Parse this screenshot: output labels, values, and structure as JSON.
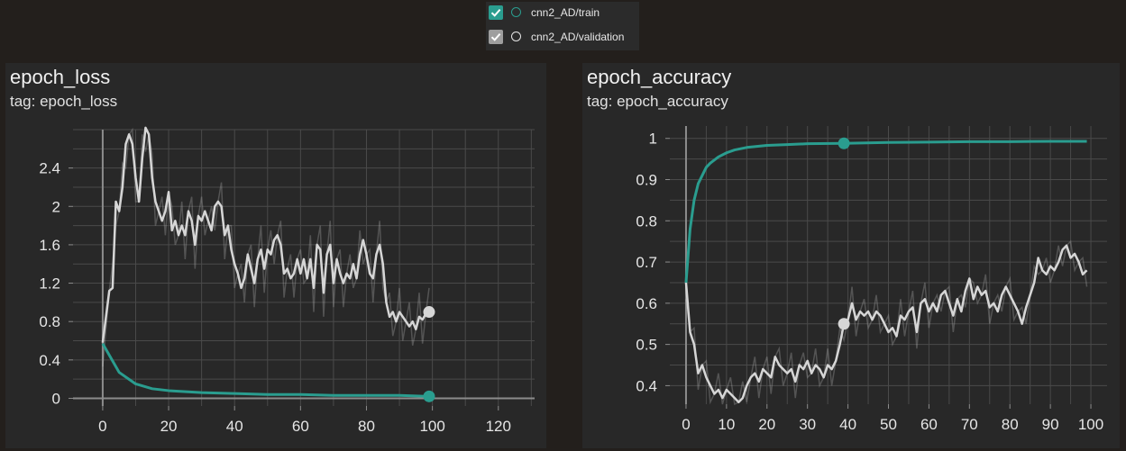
{
  "legend": {
    "items": [
      {
        "label": "cnn2_AD/train",
        "checkbox_color": "#2a9d8f",
        "circle_color": "#2a9d8f",
        "checked": true
      },
      {
        "label": "cnn2_AD/validation",
        "checkbox_color": "#9e9e9e",
        "circle_color": "#e6e6e6",
        "checked": true
      }
    ]
  },
  "colors": {
    "train": "#2a9d8f",
    "validation": "#d6d6d6",
    "grid": "#4a4a4a",
    "axis": "#8c8c8c"
  },
  "cards": [
    {
      "title": "epoch_loss",
      "tag": "tag: epoch_loss"
    },
    {
      "title": "epoch_accuracy",
      "tag": "tag: epoch_accuracy"
    }
  ],
  "chart_data": [
    {
      "type": "line",
      "title": "epoch_loss",
      "xlabel": "",
      "ylabel": "",
      "xlim": [
        -9,
        131
      ],
      "ylim": [
        -0.08,
        2.8
      ],
      "xticks": [
        0,
        20,
        40,
        60,
        80,
        100,
        120
      ],
      "yticks": [
        0,
        0.4,
        0.8,
        1.2,
        1.6,
        2,
        2.4
      ],
      "grid": true,
      "series": [
        {
          "name": "cnn2_AD/train",
          "x": [
            0,
            5,
            10,
            15,
            20,
            30,
            40,
            50,
            60,
            70,
            80,
            90,
            99
          ],
          "values": [
            0.57,
            0.27,
            0.15,
            0.1,
            0.08,
            0.06,
            0.05,
            0.04,
            0.04,
            0.03,
            0.03,
            0.03,
            0.02
          ]
        },
        {
          "name": "cnn2_AD/validation",
          "x": [
            0,
            2,
            3,
            4,
            5,
            6,
            7,
            8,
            9,
            10,
            11,
            12,
            13,
            14,
            15,
            16,
            17,
            18,
            19,
            20,
            21,
            22,
            23,
            24,
            25,
            26,
            27,
            28,
            29,
            30,
            31,
            32,
            33,
            34,
            35,
            36,
            37,
            38,
            39,
            40,
            41,
            42,
            43,
            44,
            45,
            46,
            47,
            48,
            49,
            50,
            51,
            52,
            53,
            54,
            55,
            56,
            57,
            58,
            59,
            60,
            61,
            62,
            63,
            64,
            65,
            66,
            67,
            68,
            69,
            70,
            71,
            72,
            73,
            74,
            75,
            76,
            77,
            78,
            79,
            80,
            81,
            82,
            83,
            84,
            85,
            86,
            87,
            88,
            89,
            90,
            91,
            92,
            93,
            94,
            95,
            96,
            97,
            98,
            99
          ],
          "values": [
            0.58,
            1.12,
            1.15,
            2.05,
            1.95,
            2.2,
            2.65,
            2.75,
            2.65,
            2.3,
            2.05,
            2.5,
            2.82,
            2.75,
            2.3,
            2.05,
            1.95,
            1.85,
            1.95,
            2.15,
            1.75,
            1.85,
            1.7,
            1.8,
            1.7,
            1.95,
            1.85,
            1.6,
            1.9,
            1.85,
            1.95,
            1.85,
            1.75,
            2.0,
            2.05,
            2.0,
            1.7,
            1.8,
            1.55,
            1.4,
            1.3,
            1.15,
            1.25,
            1.5,
            1.35,
            1.2,
            1.45,
            1.55,
            1.35,
            1.55,
            1.5,
            1.65,
            1.7,
            1.6,
            1.3,
            1.35,
            1.25,
            1.3,
            1.45,
            1.3,
            1.45,
            1.25,
            1.45,
            1.15,
            1.6,
            1.55,
            1.1,
            1.5,
            1.6,
            1.2,
            1.45,
            1.3,
            1.2,
            1.3,
            1.25,
            1.4,
            1.25,
            1.5,
            1.65,
            1.5,
            1.3,
            1.25,
            1.5,
            1.6,
            1.4,
            1.0,
            0.85,
            0.9,
            0.8,
            0.9,
            0.85,
            0.8,
            0.75,
            0.8,
            0.72,
            0.85,
            0.82,
            0.88,
            0.9
          ]
        }
      ]
    },
    {
      "type": "line",
      "title": "epoch_accuracy",
      "xlabel": "",
      "ylabel": "",
      "xlim": [
        -4,
        104
      ],
      "ylim": [
        0.355,
        1.03
      ],
      "xticks": [
        0,
        10,
        20,
        30,
        40,
        50,
        60,
        70,
        80,
        90,
        100
      ],
      "yticks": [
        0.4,
        0.5,
        0.6,
        0.7,
        0.8,
        0.9,
        1
      ],
      "grid": true,
      "series": [
        {
          "name": "cnn2_AD/train",
          "x": [
            0,
            1,
            2,
            3,
            4,
            5,
            6,
            8,
            10,
            12,
            15,
            20,
            25,
            30,
            39,
            50,
            60,
            70,
            80,
            90,
            99
          ],
          "values": [
            0.65,
            0.78,
            0.85,
            0.89,
            0.91,
            0.93,
            0.94,
            0.955,
            0.965,
            0.972,
            0.978,
            0.983,
            0.985,
            0.987,
            0.988,
            0.99,
            0.991,
            0.992,
            0.992,
            0.993,
            0.993
          ]
        },
        {
          "name": "cnn2_AD/validation",
          "x": [
            0,
            1,
            2,
            3,
            4,
            5,
            6,
            7,
            8,
            9,
            10,
            11,
            12,
            13,
            14,
            15,
            16,
            17,
            18,
            19,
            20,
            21,
            22,
            23,
            24,
            25,
            26,
            27,
            28,
            29,
            30,
            31,
            32,
            33,
            34,
            35,
            36,
            37,
            38,
            39,
            40,
            41,
            42,
            43,
            44,
            45,
            46,
            47,
            48,
            49,
            50,
            51,
            52,
            53,
            54,
            55,
            56,
            57,
            58,
            59,
            60,
            61,
            62,
            63,
            64,
            65,
            66,
            67,
            68,
            69,
            70,
            71,
            72,
            73,
            74,
            75,
            76,
            77,
            78,
            79,
            80,
            81,
            82,
            83,
            84,
            85,
            86,
            87,
            88,
            89,
            90,
            91,
            92,
            93,
            94,
            95,
            96,
            97,
            98,
            99
          ],
          "values": [
            0.65,
            0.53,
            0.5,
            0.43,
            0.45,
            0.42,
            0.4,
            0.38,
            0.39,
            0.37,
            0.39,
            0.38,
            0.37,
            0.36,
            0.37,
            0.4,
            0.42,
            0.43,
            0.41,
            0.44,
            0.43,
            0.42,
            0.47,
            0.45,
            0.44,
            0.43,
            0.44,
            0.41,
            0.45,
            0.44,
            0.46,
            0.43,
            0.45,
            0.44,
            0.42,
            0.45,
            0.44,
            0.46,
            0.5,
            0.55,
            0.56,
            0.6,
            0.56,
            0.58,
            0.57,
            0.58,
            0.56,
            0.58,
            0.57,
            0.55,
            0.53,
            0.54,
            0.52,
            0.57,
            0.56,
            0.58,
            0.59,
            0.53,
            0.6,
            0.61,
            0.58,
            0.6,
            0.58,
            0.62,
            0.63,
            0.6,
            0.57,
            0.61,
            0.58,
            0.63,
            0.66,
            0.61,
            0.64,
            0.62,
            0.63,
            0.59,
            0.6,
            0.58,
            0.62,
            0.64,
            0.62,
            0.6,
            0.58,
            0.55,
            0.59,
            0.62,
            0.65,
            0.71,
            0.68,
            0.67,
            0.69,
            0.68,
            0.7,
            0.73,
            0.74,
            0.71,
            0.72,
            0.7,
            0.67,
            0.68
          ]
        }
      ]
    }
  ]
}
